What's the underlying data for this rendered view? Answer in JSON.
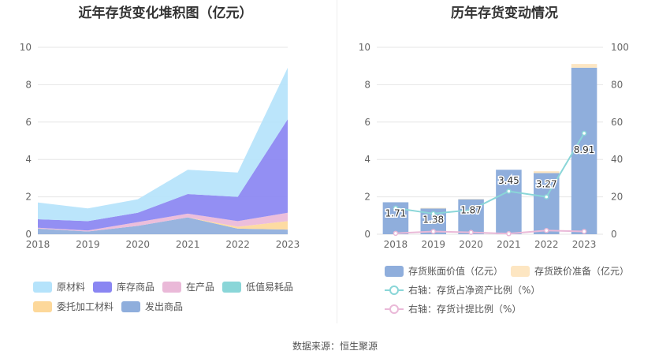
{
  "titles": {
    "left": "近年存货变化堆积图（亿元）",
    "right": "历年存货变动情况"
  },
  "source": "数据来源：恒生聚源",
  "chart_data": [
    {
      "type": "area",
      "stacked": true,
      "title": "近年存货变化堆积图（亿元）",
      "x": [
        "2018",
        "2019",
        "2020",
        "2021",
        "2022",
        "2023"
      ],
      "ylim": [
        0,
        10
      ],
      "yticks": [
        "0",
        "2",
        "4",
        "6",
        "8",
        "10"
      ],
      "grid": true,
      "legend_position": "bottom",
      "series": [
        {
          "name": "发出商品",
          "color": "#8faedc",
          "values": [
            0.3,
            0.15,
            0.45,
            0.9,
            0.3,
            0.25
          ]
        },
        {
          "name": "委托加工材料",
          "color": "#fdd89a",
          "values": [
            0.0,
            0.0,
            0.0,
            0.0,
            0.1,
            0.45
          ]
        },
        {
          "name": "低值易耗品",
          "color": "#8ad6d8",
          "values": [
            0.0,
            0.0,
            0.0,
            0.0,
            0.0,
            0.0
          ]
        },
        {
          "name": "在产品",
          "color": "#eab9d8",
          "values": [
            0.05,
            0.05,
            0.2,
            0.2,
            0.3,
            0.45
          ]
        },
        {
          "name": "库存商品",
          "color": "#8a86f2",
          "values": [
            0.45,
            0.5,
            0.5,
            1.05,
            1.3,
            5.0
          ]
        },
        {
          "name": "原材料",
          "color": "#b5e3fb",
          "values": [
            0.9,
            0.68,
            0.72,
            1.3,
            1.3,
            2.76
          ]
        }
      ],
      "legend_order": [
        "原材料",
        "库存商品",
        "在产品",
        "低值易耗品",
        "委托加工材料",
        "发出商品"
      ]
    },
    {
      "type": "bar",
      "title": "历年存货变动情况",
      "categories": [
        "2018",
        "2019",
        "2020",
        "2021",
        "2022",
        "2023"
      ],
      "ylim": [
        0,
        10
      ],
      "yticks": [
        "0",
        "2",
        "4",
        "6",
        "8",
        "10"
      ],
      "y2lim": [
        0,
        100
      ],
      "y2ticks": [
        "0",
        "20",
        "40",
        "60",
        "80",
        "100"
      ],
      "grid": true,
      "legend_position": "bottom",
      "series": [
        {
          "name": "存货账面价值（亿元）",
          "kind": "bar",
          "color": "#8faedc",
          "values": [
            1.71,
            1.38,
            1.87,
            3.45,
            3.27,
            8.91
          ],
          "labels": [
            "1.71",
            "1.38",
            "1.87",
            "3.45",
            "3.27",
            "8.91"
          ]
        },
        {
          "name": "存货跌价准备（亿元）",
          "kind": "bar-stacked",
          "color": "#fde6c2",
          "values": [
            0.0,
            0.03,
            0.02,
            0.0,
            0.1,
            0.2
          ]
        },
        {
          "name": "右轴：存货占净资产比例（%）",
          "kind": "line",
          "axis": "right",
          "color": "#8ad6d8",
          "values": [
            14,
            11,
            13,
            23,
            20,
            54
          ]
        },
        {
          "name": "右轴：存货计提比例（%）",
          "kind": "line",
          "axis": "right",
          "color": "#eab9d8",
          "values": [
            0.5,
            1.5,
            1.0,
            0.3,
            2.0,
            1.5
          ]
        }
      ]
    }
  ]
}
